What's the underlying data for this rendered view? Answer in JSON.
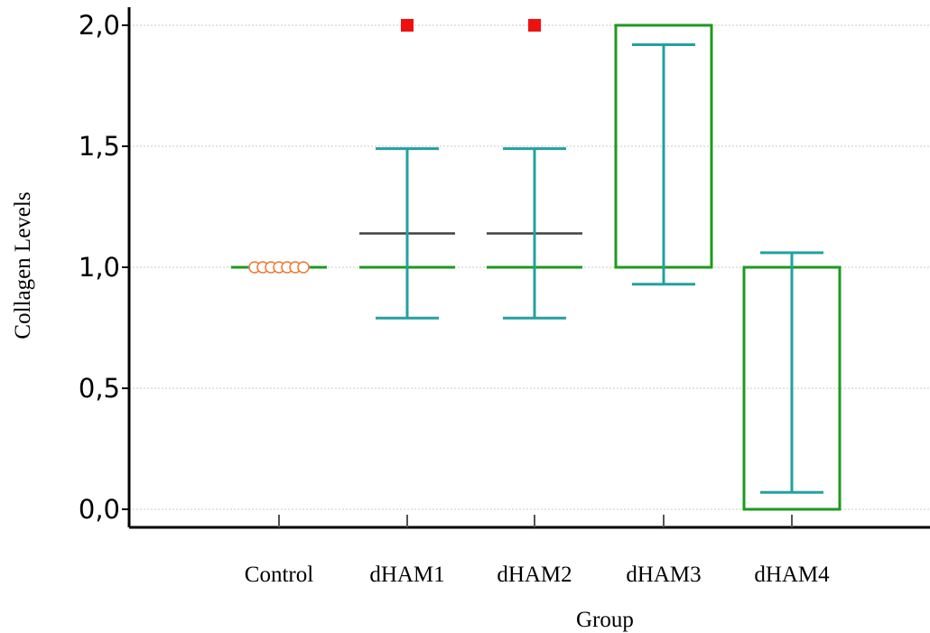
{
  "chart_data": {
    "type": "box",
    "title": "",
    "xlabel": "Group",
    "ylabel": "Collagen Levels",
    "ylim": [
      0,
      2
    ],
    "yticks": [
      0,
      0.5,
      1,
      1.5,
      2
    ],
    "ytick_labels": [
      "0,0",
      "0,5",
      "1,0",
      "1,5",
      "2,0"
    ],
    "categories": [
      "Control",
      "dHAM1",
      "dHAM2",
      "dHAM3",
      "dHAM4"
    ],
    "grid": true,
    "groups": [
      {
        "name": "Control",
        "q1": 1.0,
        "median": 1.0,
        "q3": 1.0,
        "mean": 1.0,
        "ci_low": 1.0,
        "ci_high": 1.0,
        "points": [
          1,
          1,
          1,
          1,
          1,
          1,
          1
        ],
        "outliers": []
      },
      {
        "name": "dHAM1",
        "q1": 1.0,
        "median": 1.0,
        "q3": 1.0,
        "mean": 1.14,
        "ci_low": 0.79,
        "ci_high": 1.49,
        "points": [],
        "outliers": [
          2.0
        ]
      },
      {
        "name": "dHAM2",
        "q1": 1.0,
        "median": 1.0,
        "q3": 1.0,
        "mean": 1.14,
        "ci_low": 0.79,
        "ci_high": 1.49,
        "points": [],
        "outliers": [
          2.0
        ]
      },
      {
        "name": "dHAM3",
        "q1": 1.0,
        "median": null,
        "q3": 2.0,
        "mean": null,
        "ci_low": 0.93,
        "ci_high": 1.92,
        "points": [],
        "outliers": []
      },
      {
        "name": "dHAM4",
        "q1": 0.0,
        "median": null,
        "q3": 1.0,
        "mean": null,
        "ci_low": 0.07,
        "ci_high": 1.06,
        "points": [],
        "outliers": []
      }
    ],
    "colors": {
      "box": "#1e9a1e",
      "ci": "#24a0a0",
      "mean": "#404040",
      "outlier": "#ee1111",
      "points": "#f07830",
      "grid": "#c8c8c8",
      "axis": "#000000"
    }
  }
}
